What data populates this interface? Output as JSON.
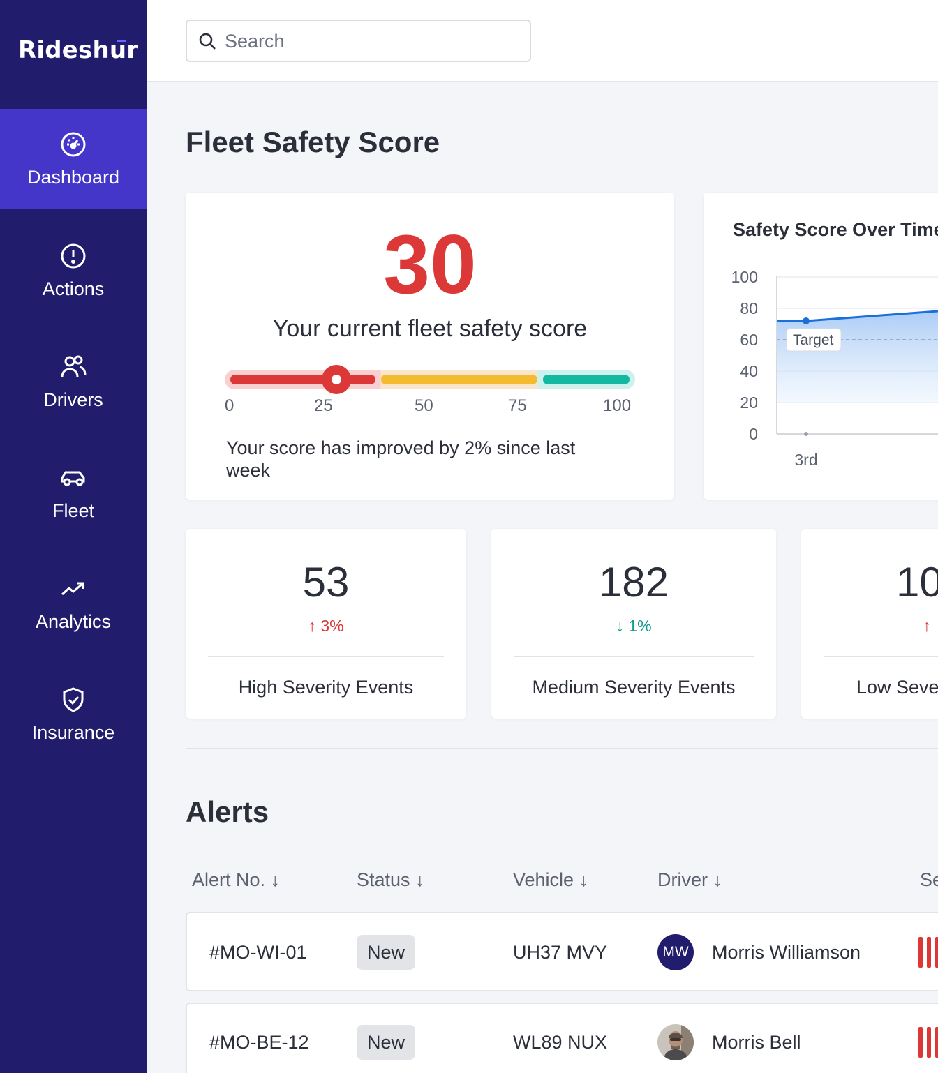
{
  "brand": "Rideshur",
  "sidebar": {
    "items": [
      {
        "label": "Dashboard",
        "icon": "dashboard-icon",
        "active": true
      },
      {
        "label": "Actions",
        "icon": "alert-circle-icon",
        "active": false
      },
      {
        "label": "Drivers",
        "icon": "users-icon",
        "active": false
      },
      {
        "label": "Fleet",
        "icon": "car-icon",
        "active": false
      },
      {
        "label": "Analytics",
        "icon": "trending-up-icon",
        "active": false
      },
      {
        "label": "Insurance",
        "icon": "shield-check-icon",
        "active": false
      }
    ]
  },
  "search": {
    "placeholder": "Search",
    "value": ""
  },
  "page_title": "Fleet Safety Score",
  "score_card": {
    "score": "30",
    "caption": "Your current fleet safety score",
    "scale": [
      "0",
      "25",
      "50",
      "75",
      "100"
    ],
    "gauge_value": 30,
    "note": "Your score has improved by 2% since last week"
  },
  "chart_card": {
    "title": "Safety Score Over Time",
    "target_label": "Target"
  },
  "chart_data": {
    "type": "line",
    "title": "Safety Score Over Time",
    "x": [
      "3rd"
    ],
    "series": [
      {
        "values": [
          72
        ]
      }
    ],
    "target": 60,
    "ylim": [
      0,
      100
    ],
    "yticks": [
      "100",
      "80",
      "60",
      "40",
      "20",
      "0"
    ],
    "xticks": [
      "3rd"
    ],
    "grid": true
  },
  "stats": [
    {
      "value": "53",
      "delta": "3%",
      "direction": "up",
      "label": "High Severity Events"
    },
    {
      "value": "182",
      "delta": "1%",
      "direction": "down",
      "label": "Medium Severity Events"
    },
    {
      "value": "10",
      "delta": "",
      "direction": "up",
      "label": "Low Seve"
    }
  ],
  "alerts": {
    "title": "Alerts",
    "columns": [
      "Alert No.",
      "Status",
      "Vehicle",
      "Driver",
      "Se"
    ],
    "rows": [
      {
        "alert_no": "#MO-WI-01",
        "status": "New",
        "vehicle": "UH37 MVY",
        "driver": "Morris Williamson",
        "initials": "MW",
        "severity": "high"
      },
      {
        "alert_no": "#MO-BE-12",
        "status": "New",
        "vehicle": "WL89 NUX",
        "driver": "Morris Bell",
        "initials": "",
        "severity": "high"
      }
    ]
  },
  "colors": {
    "sidebar": "#211c6b",
    "active": "#4436c9",
    "danger": "#dc3838",
    "warning": "#f5bb30",
    "success": "#14b8a0"
  }
}
